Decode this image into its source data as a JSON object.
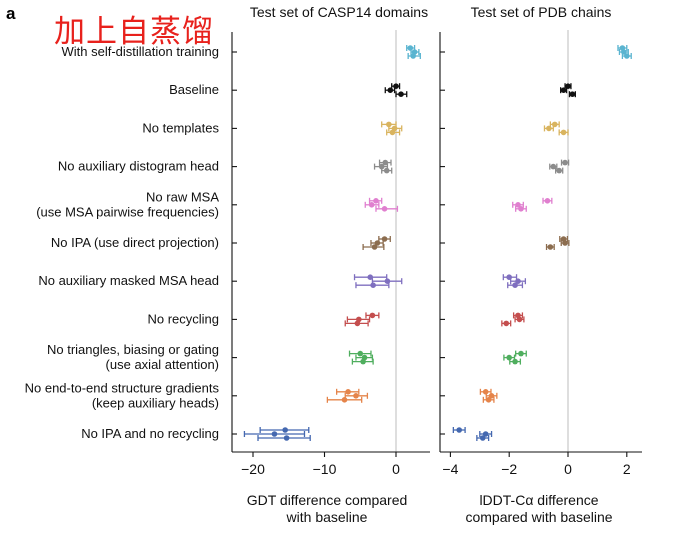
{
  "panel_letter": "a",
  "annotation": "加上自蒸馏",
  "chart_data": [
    {
      "type": "dot-errorbar",
      "title": "Test set of CASP14 domains",
      "xlabel": "GDT difference compared with baseline",
      "xlim": [
        -22,
        5
      ],
      "xticks": [
        -20,
        -10,
        0
      ],
      "reference_line_x": 0,
      "categories": [
        "With self-distillation training",
        "Baseline",
        "No templates",
        "No auxiliary distogram head",
        "No raw MSA\n(use MSA pairwise frequencies)",
        "No IPA (use direct projection)",
        "No auxiliary masked MSA head",
        "No recycling",
        "No triangles, biasing or gating\n(use axial attention)",
        "No end-to-end structure gradients\n(keep auxiliary heads)",
        "No IPA and no recycling"
      ],
      "colors": [
        "#5ab4d0",
        "#111111",
        "#d9b45f",
        "#8c8c8c",
        "#e07fcf",
        "#8c6d4f",
        "#7f6fbf",
        "#c44e4e",
        "#4fae5e",
        "#e5844a",
        "#4468b0"
      ],
      "series": [
        {
          "category": "With self-distillation training",
          "points": [
            {
              "value": 2.0,
              "low": 1.5,
              "high": 2.6
            },
            {
              "value": 2.6,
              "low": 2.1,
              "high": 3.2
            },
            {
              "value": 2.4,
              "low": 1.7,
              "high": 3.4
            }
          ]
        },
        {
          "category": "Baseline",
          "points": [
            {
              "value": 0.0,
              "low": -0.6,
              "high": 0.5
            },
            {
              "value": -0.8,
              "low": -1.5,
              "high": -0.2
            },
            {
              "value": 0.7,
              "low": 0.0,
              "high": 1.5
            }
          ]
        },
        {
          "category": "No templates",
          "points": [
            {
              "value": -1.0,
              "low": -2.0,
              "high": 0.0
            },
            {
              "value": -0.2,
              "low": -1.0,
              "high": 0.8
            },
            {
              "value": -0.5,
              "low": -1.3,
              "high": 0.5
            }
          ]
        },
        {
          "category": "No auxiliary distogram head",
          "points": [
            {
              "value": -1.5,
              "low": -2.3,
              "high": -0.7
            },
            {
              "value": -2.0,
              "low": -3.0,
              "high": -1.2
            },
            {
              "value": -1.3,
              "low": -2.0,
              "high": -0.6
            }
          ]
        },
        {
          "category": "No raw MSA\n(use MSA pairwise frequencies)",
          "points": [
            {
              "value": -2.8,
              "low": -3.7,
              "high": -2.0
            },
            {
              "value": -3.4,
              "low": -4.3,
              "high": -2.4
            },
            {
              "value": -1.6,
              "low": -2.8,
              "high": 0.2
            }
          ]
        },
        {
          "category": "No IPA (use direct projection)",
          "points": [
            {
              "value": -1.6,
              "low": -2.4,
              "high": -0.8
            },
            {
              "value": -2.6,
              "low": -3.5,
              "high": -1.8
            },
            {
              "value": -3.0,
              "low": -4.6,
              "high": -1.7
            }
          ]
        },
        {
          "category": "No auxiliary masked MSA head",
          "points": [
            {
              "value": -3.6,
              "low": -5.8,
              "high": -1.3
            },
            {
              "value": -1.2,
              "low": -3.3,
              "high": 0.8
            },
            {
              "value": -3.2,
              "low": -5.6,
              "high": -1.0
            }
          ]
        },
        {
          "category": "No recycling",
          "points": [
            {
              "value": -3.3,
              "low": -4.2,
              "high": -2.4
            },
            {
              "value": -5.2,
              "low": -6.8,
              "high": -3.7
            },
            {
              "value": -5.4,
              "low": -7.1,
              "high": -3.9
            }
          ]
        },
        {
          "category": "No triangles, biasing or gating\n(use axial attention)",
          "points": [
            {
              "value": -5.0,
              "low": -6.5,
              "high": -3.5
            },
            {
              "value": -4.4,
              "low": -5.6,
              "high": -3.3
            },
            {
              "value": -4.6,
              "low": -6.1,
              "high": -3.2
            }
          ]
        },
        {
          "category": "No end-to-end structure gradients\n(keep auxiliary heads)",
          "points": [
            {
              "value": -6.7,
              "low": -8.3,
              "high": -5.2
            },
            {
              "value": -5.6,
              "low": -7.1,
              "high": -4.0
            },
            {
              "value": -7.2,
              "low": -9.6,
              "high": -4.8
            }
          ]
        },
        {
          "category": "No IPA and no recycling",
          "points": [
            {
              "value": -15.5,
              "low": -19.0,
              "high": -12.2
            },
            {
              "value": -17.0,
              "low": -21.2,
              "high": -12.8
            },
            {
              "value": -15.3,
              "low": -19.3,
              "high": -12.0
            }
          ]
        }
      ]
    },
    {
      "type": "dot-errorbar",
      "title": "Test set of PDB chains",
      "xlabel": "lDDT-Cα difference compared with baseline",
      "xlim": [
        -4.2,
        2.5
      ],
      "xticks": [
        -4,
        -2,
        0,
        2
      ],
      "reference_line_x": 0,
      "categories": [
        "With self-distillation training",
        "Baseline",
        "No templates",
        "No auxiliary distogram head",
        "No raw MSA\n(use MSA pairwise frequencies)",
        "No IPA (use direct projection)",
        "No auxiliary masked MSA head",
        "No recycling",
        "No triangles, biasing or gating\n(use axial attention)",
        "No end-to-end structure gradients\n(keep auxiliary heads)",
        "No IPA and no recycling"
      ],
      "series": [
        {
          "category": "With self-distillation training",
          "points": [
            {
              "value": 1.85,
              "low": 1.7,
              "high": 2.0
            },
            {
              "value": 1.9,
              "low": 1.75,
              "high": 2.05
            },
            {
              "value": 2.0,
              "low": 1.85,
              "high": 2.15
            }
          ]
        },
        {
          "category": "Baseline",
          "points": [
            {
              "value": 0.0,
              "low": -0.1,
              "high": 0.1
            },
            {
              "value": -0.15,
              "low": -0.25,
              "high": -0.05
            },
            {
              "value": 0.15,
              "low": 0.05,
              "high": 0.25
            }
          ]
        },
        {
          "category": "No templates",
          "points": [
            {
              "value": -0.45,
              "low": -0.6,
              "high": -0.3
            },
            {
              "value": -0.65,
              "low": -0.8,
              "high": -0.5
            },
            {
              "value": -0.15,
              "low": -0.3,
              "high": 0.0
            }
          ]
        },
        {
          "category": "No auxiliary distogram head",
          "points": [
            {
              "value": -0.1,
              "low": -0.22,
              "high": 0.02
            },
            {
              "value": -0.5,
              "low": -0.62,
              "high": -0.38
            },
            {
              "value": -0.3,
              "low": -0.42,
              "high": -0.18
            }
          ]
        },
        {
          "category": "No raw MSA\n(use MSA pairwise frequencies)",
          "points": [
            {
              "value": -0.7,
              "low": -0.85,
              "high": -0.55
            },
            {
              "value": -1.7,
              "low": -1.88,
              "high": -1.52
            },
            {
              "value": -1.6,
              "low": -1.78,
              "high": -1.42
            }
          ]
        },
        {
          "category": "No IPA (use direct projection)",
          "points": [
            {
              "value": -0.15,
              "low": -0.28,
              "high": -0.02
            },
            {
              "value": -0.1,
              "low": -0.23,
              "high": 0.03
            },
            {
              "value": -0.6,
              "low": -0.73,
              "high": -0.47
            }
          ]
        },
        {
          "category": "No auxiliary masked MSA head",
          "points": [
            {
              "value": -2.0,
              "low": -2.2,
              "high": -1.75
            },
            {
              "value": -1.7,
              "low": -1.95,
              "high": -1.45
            },
            {
              "value": -1.8,
              "low": -2.05,
              "high": -1.55
            }
          ]
        },
        {
          "category": "No recycling",
          "points": [
            {
              "value": -1.7,
              "low": -1.85,
              "high": -1.55
            },
            {
              "value": -1.65,
              "low": -1.8,
              "high": -1.5
            },
            {
              "value": -2.1,
              "low": -2.25,
              "high": -1.95
            }
          ]
        },
        {
          "category": "No triangles, biasing or gating\n(use axial attention)",
          "points": [
            {
              "value": -1.6,
              "low": -1.78,
              "high": -1.42
            },
            {
              "value": -2.0,
              "low": -2.18,
              "high": -1.82
            },
            {
              "value": -1.8,
              "low": -1.98,
              "high": -1.62
            }
          ]
        },
        {
          "category": "No end-to-end structure gradients\n(keep auxiliary heads)",
          "points": [
            {
              "value": -2.8,
              "low": -2.98,
              "high": -2.62
            },
            {
              "value": -2.6,
              "low": -2.78,
              "high": -2.42
            },
            {
              "value": -2.7,
              "low": -2.88,
              "high": -2.52
            }
          ]
        },
        {
          "category": "No IPA and no recycling",
          "points": [
            {
              "value": -3.7,
              "low": -3.9,
              "high": -3.5
            },
            {
              "value": -2.8,
              "low": -3.0,
              "high": -2.6
            },
            {
              "value": -2.9,
              "low": -3.1,
              "high": -2.7
            }
          ]
        }
      ]
    }
  ]
}
